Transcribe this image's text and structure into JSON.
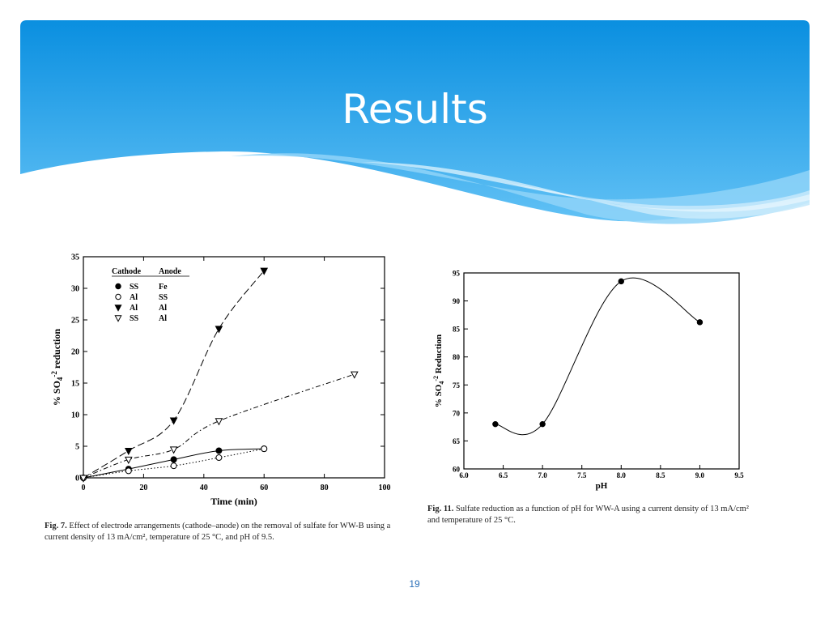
{
  "slide": {
    "title": "Results",
    "page_number": "19",
    "colors": {
      "banner_top": "#0a8fe0",
      "banner_bottom": "#61c1f5",
      "page_number": "#2a6fb8"
    }
  },
  "fig7": {
    "caption_label": "Fig. 7.",
    "caption_text": "Effect of electrode arrangements (cathode–anode) on the removal of sulfate for WW-B using a current density of 13 mA/cm², temperature of 25 °C, and pH of 9.5."
  },
  "fig11": {
    "caption_label": "Fig. 11.",
    "caption_text": "Sulfate reduction as a function of pH for WW-A using a current density of 13 mA/cm² and temperature of 25 °C."
  },
  "chart_data": [
    {
      "type": "line",
      "xlabel": "Time (min)",
      "ylabel": "% SO4-2 reduction",
      "xlim": [
        0,
        100
      ],
      "ylim": [
        0,
        35
      ],
      "xticks": [
        0,
        20,
        40,
        60,
        80,
        100
      ],
      "yticks": [
        0,
        5,
        10,
        15,
        20,
        25,
        30,
        35
      ],
      "grid": false,
      "legend_position": "top-left",
      "legend_header": {
        "cathode": "Cathode",
        "anode": "Anode"
      },
      "series": [
        {
          "cathode": "SS",
          "anode": "Fe",
          "marker": "filled-circle",
          "line": "solid",
          "x": [
            0,
            15,
            30,
            45,
            60
          ],
          "y": [
            0,
            1.4,
            2.9,
            4.3,
            4.6
          ]
        },
        {
          "cathode": "Al",
          "anode": "SS",
          "marker": "open-circle",
          "line": "dotted",
          "x": [
            0,
            15,
            30,
            45,
            60
          ],
          "y": [
            0,
            1.1,
            1.9,
            3.2,
            4.6
          ]
        },
        {
          "cathode": "Al",
          "anode": "Al",
          "marker": "filled-triangle-down",
          "line": "dashed",
          "x": [
            0,
            15,
            30,
            45,
            60
          ],
          "y": [
            0,
            4.3,
            9.1,
            23.6,
            32.8
          ]
        },
        {
          "cathode": "SS",
          "anode": "Al",
          "marker": "open-triangle-down",
          "line": "dash-dot",
          "x": [
            0,
            15,
            30,
            45,
            90
          ],
          "y": [
            0,
            2.9,
            4.5,
            9.0,
            16.4
          ]
        }
      ]
    },
    {
      "type": "line",
      "xlabel": "pH",
      "ylabel": "% SO4-2 Reduction",
      "xlim": [
        6.0,
        9.5
      ],
      "ylim": [
        60,
        95
      ],
      "xticks": [
        "6.0",
        "6.5",
        "7.0",
        "7.5",
        "8.0",
        "8.5",
        "9.0",
        "9.5"
      ],
      "yticks": [
        60,
        65,
        70,
        75,
        80,
        85,
        90,
        95
      ],
      "grid": false,
      "series": [
        {
          "marker": "filled-circle",
          "line": "smooth",
          "x": [
            6.4,
            7.0,
            8.0,
            9.0
          ],
          "y": [
            68,
            68,
            93.5,
            86.2
          ]
        }
      ]
    }
  ]
}
